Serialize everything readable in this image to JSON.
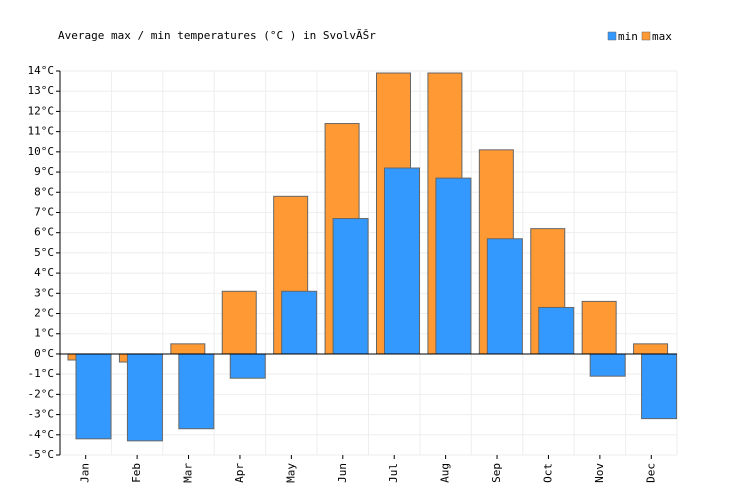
{
  "chart_data": {
    "type": "bar",
    "title": "Average max / min temperatures (°C ) in SvolvÃŠr",
    "categories": [
      "Jan",
      "Feb",
      "Mar",
      "Apr",
      "May",
      "Jun",
      "Jul",
      "Aug",
      "Sep",
      "Oct",
      "Nov",
      "Dec"
    ],
    "series": [
      {
        "name": "min",
        "color": "#3399ff",
        "values": [
          -4.2,
          -4.3,
          -3.7,
          -1.2,
          3.1,
          6.7,
          9.2,
          8.7,
          5.7,
          2.3,
          -1.1,
          -3.2
        ]
      },
      {
        "name": "max",
        "color": "#ff9933",
        "values": [
          -0.3,
          -0.4,
          0.5,
          3.1,
          7.8,
          11.4,
          13.9,
          13.9,
          10.1,
          6.2,
          2.6,
          0.5
        ]
      }
    ],
    "ylim": [
      -5,
      14
    ],
    "yticks": [
      {
        "value": -5,
        "label": "-5°C"
      },
      {
        "value": -4,
        "label": "-4°C"
      },
      {
        "value": -3,
        "label": "-3°C"
      },
      {
        "value": -2,
        "label": "-2°C"
      },
      {
        "value": -1,
        "label": "-1°C"
      },
      {
        "value": 0,
        "label": "0°C"
      },
      {
        "value": 1,
        "label": "1°C"
      },
      {
        "value": 2,
        "label": "2°C"
      },
      {
        "value": 3,
        "label": "3°C"
      },
      {
        "value": 4,
        "label": "4°C"
      },
      {
        "value": 5,
        "label": "5°C"
      },
      {
        "value": 6,
        "label": "6°C"
      },
      {
        "value": 7,
        "label": "7°C"
      },
      {
        "value": 8,
        "label": "8°C"
      },
      {
        "value": 9,
        "label": "9°C"
      },
      {
        "value": 10,
        "label": "10°C"
      },
      {
        "value": 11,
        "label": "11°C"
      },
      {
        "value": 12,
        "label": "12°C"
      },
      {
        "value": 13,
        "label": "13°C"
      },
      {
        "value": 14,
        "label": "14°C"
      }
    ],
    "grid": true,
    "legend": "top-right"
  }
}
